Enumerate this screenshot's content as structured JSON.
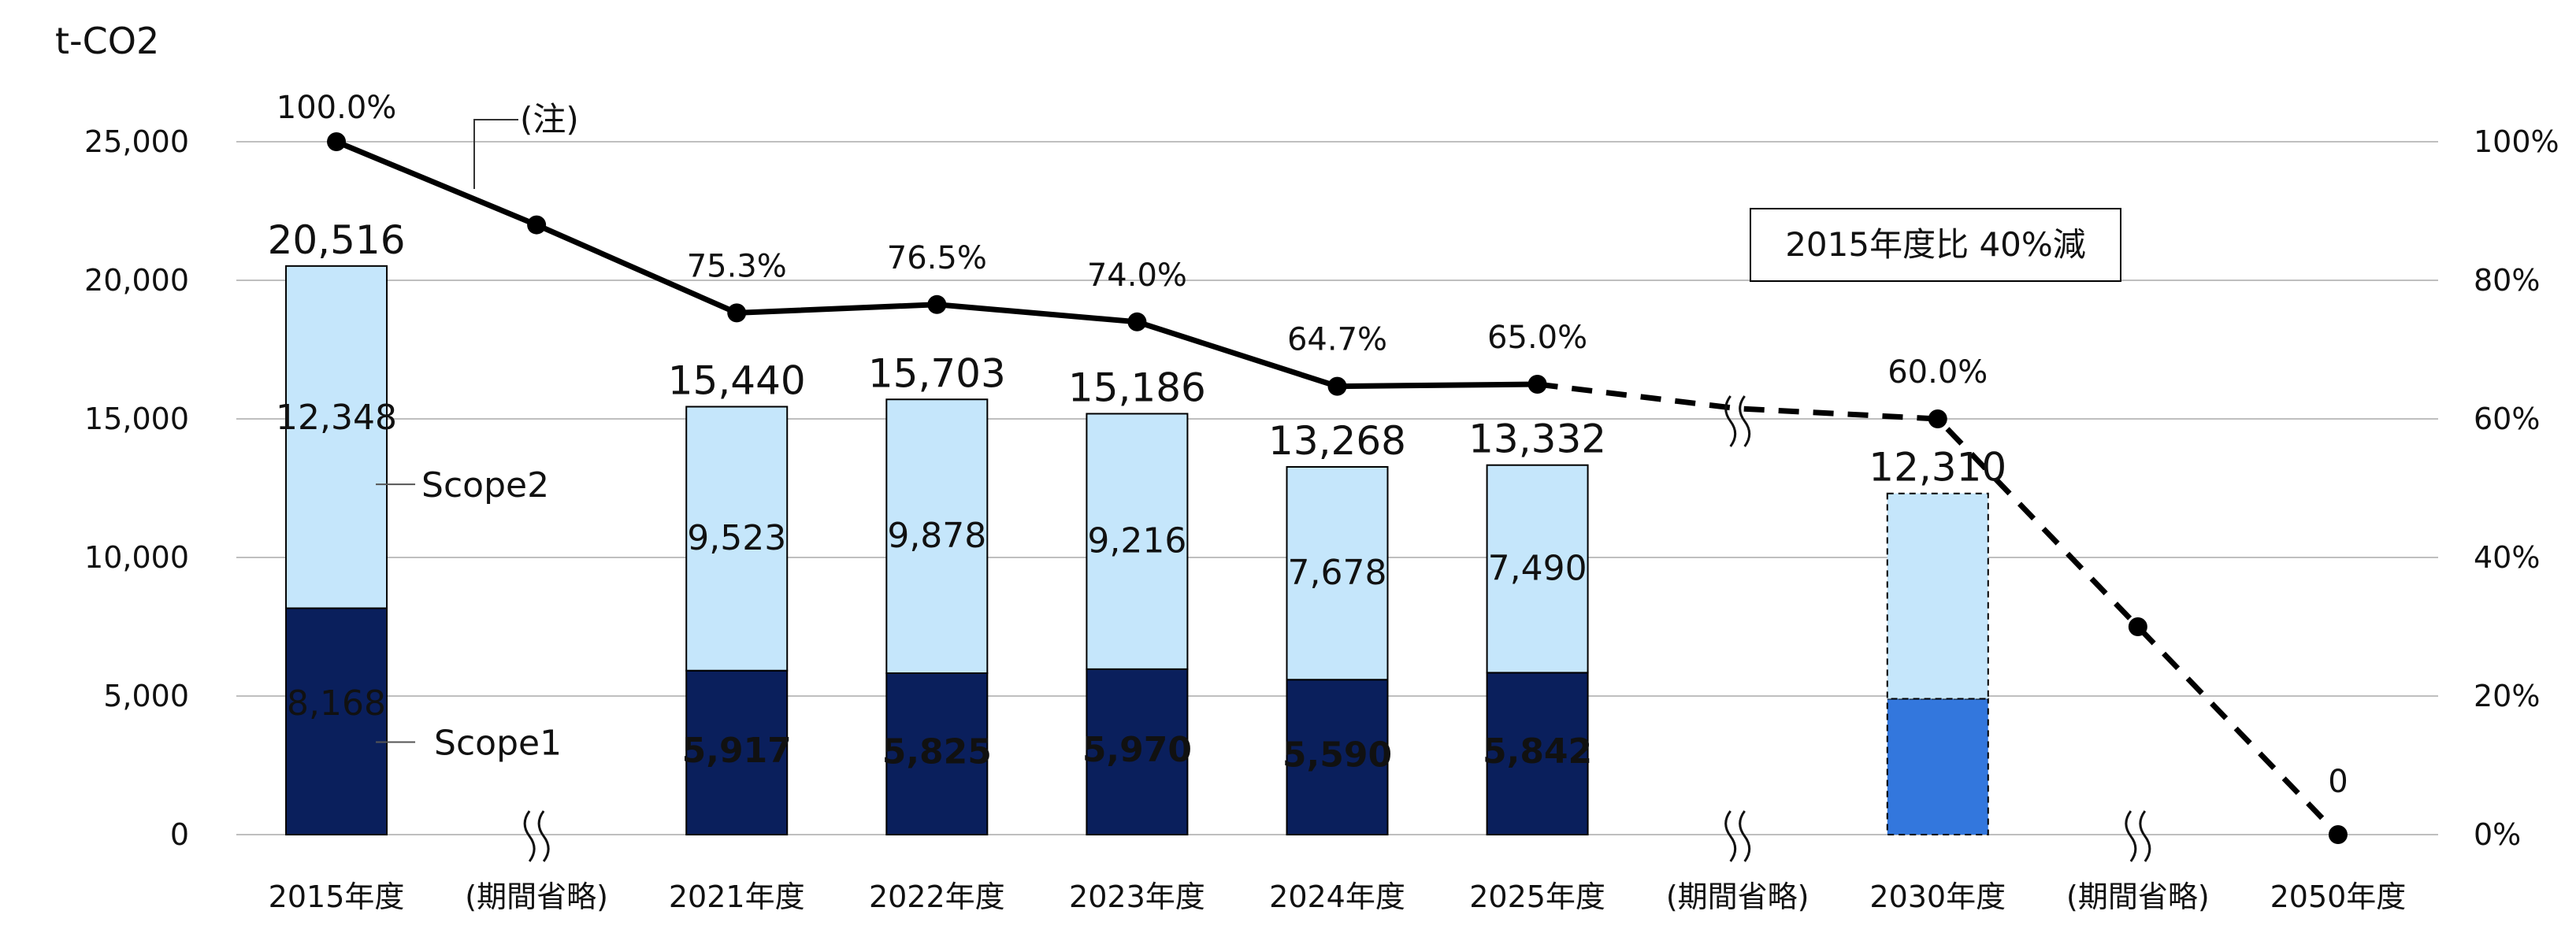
{
  "chart_data": {
    "type": "bar",
    "y_unit_label": "t-CO2",
    "categories": [
      "2015年度",
      "(期間省略)",
      "2021年度",
      "2022年度",
      "2023年度",
      "2024年度",
      "2025年度",
      "(期間省略)",
      "2030年度",
      "(期間省略)",
      "2050年度"
    ],
    "totals": [
      20516,
      null,
      15440,
      15703,
      15186,
      13268,
      13332,
      null,
      12310,
      null,
      null
    ],
    "total_labels": [
      "20,516",
      "",
      "15,440",
      "15,703",
      "15,186",
      "13,268",
      "13,332",
      "",
      "12,310",
      "",
      ""
    ],
    "series": [
      {
        "name": "Scope1",
        "values": [
          8168,
          null,
          5917,
          5825,
          5970,
          5590,
          5842,
          null,
          null,
          null,
          null
        ],
        "labels": [
          "8,168",
          "",
          "5,917",
          "5,825",
          "5,970",
          "5,590",
          "5,842",
          "",
          "",
          "",
          ""
        ]
      },
      {
        "name": "Scope2",
        "values": [
          12348,
          null,
          9523,
          9878,
          9216,
          7678,
          7490,
          null,
          null,
          null,
          null
        ],
        "labels": [
          "12,348",
          "",
          "9,523",
          "9,878",
          "9,216",
          "7,678",
          "7,490",
          "",
          "",
          "",
          ""
        ]
      }
    ],
    "target_2030": {
      "scope1_part": 4900,
      "scope2_part": 7410
    },
    "ratio_line": {
      "values": [
        100.0,
        88.0,
        75.3,
        76.5,
        74.0,
        64.7,
        65.0,
        61.5,
        60.0,
        30.0,
        0
      ],
      "labels": [
        "100.0%",
        "",
        "75.3%",
        "76.5%",
        "74.0%",
        "64.7%",
        "65.0%",
        "",
        "60.0%",
        "",
        "0"
      ],
      "actual_until_index": 6
    },
    "y_left": {
      "min": 0,
      "max": 25000,
      "ticks": [
        "0",
        "5,000",
        "10,000",
        "15,000",
        "20,000",
        "25,000"
      ]
    },
    "y_right": {
      "min": 0,
      "max": 100,
      "ticks": [
        "0%",
        "20%",
        "40%",
        "60%",
        "80%",
        "100%"
      ]
    },
    "annotations": {
      "note": "(注)",
      "box": "2015年度比 40%減"
    },
    "colors": {
      "scope1": "#0a1f5c",
      "scope2": "#c5e6fb",
      "target_scope1": "#3377dd",
      "grid": "#bfbfbf",
      "line": "#000000"
    }
  }
}
